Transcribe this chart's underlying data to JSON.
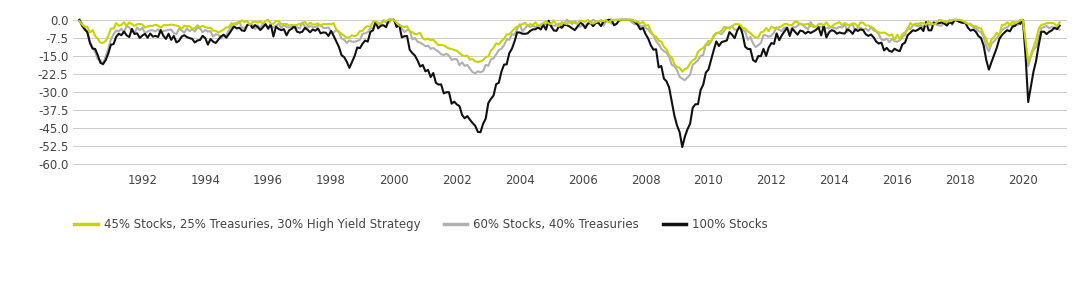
{
  "title": "",
  "ylabel": "",
  "xlabel": "",
  "ylim": [
    -62,
    2
  ],
  "yticks": [
    0.0,
    -7.5,
    -15.0,
    -22.5,
    -30.0,
    -37.5,
    -45.0,
    -52.5,
    -60.0
  ],
  "ytick_labels": [
    "0.0",
    "-7.5",
    "-15.0",
    "-22.5",
    "-30.0",
    "-37.5",
    "-45.0",
    "-52.5",
    "-60.0"
  ],
  "color_hy": "#c8d400",
  "color_6040": "#b0b0b0",
  "color_stocks": "#111111",
  "legend_labels": [
    "45% Stocks, 25% Treasuries, 30% High Yield Strategy",
    "60% Stocks, 40% Treasuries",
    "100% Stocks"
  ],
  "background_color": "#ffffff",
  "grid_color": "#cccccc",
  "start_year": 1990,
  "end_year": 2021,
  "lw_hy": 1.5,
  "lw_6040": 1.5,
  "lw_stocks": 1.5
}
